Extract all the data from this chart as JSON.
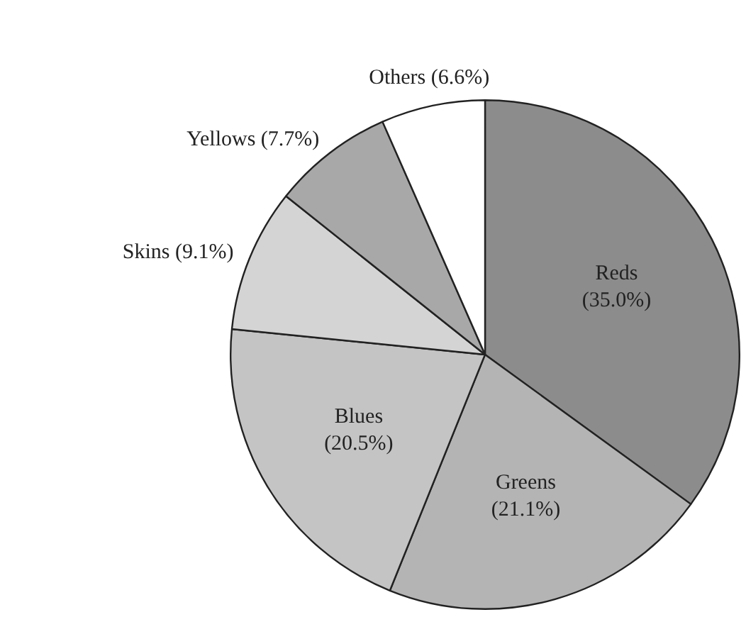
{
  "chart_data": {
    "type": "pie",
    "categories": [
      "Reds",
      "Greens",
      "Blues",
      "Skins",
      "Yellows",
      "Others"
    ],
    "values": [
      35.0,
      21.1,
      20.5,
      9.1,
      7.7,
      6.6
    ],
    "value_labels": [
      "(35.0%)",
      "(21.1%)",
      "(20.5%)",
      "(9.1%)",
      "(7.7%)",
      "(6.6%)"
    ],
    "colors": [
      "#8c8c8c",
      "#b4b4b4",
      "#c4c4c4",
      "#d4d4d4",
      "#a8a8a8",
      "#ffffff"
    ],
    "legend": false
  }
}
